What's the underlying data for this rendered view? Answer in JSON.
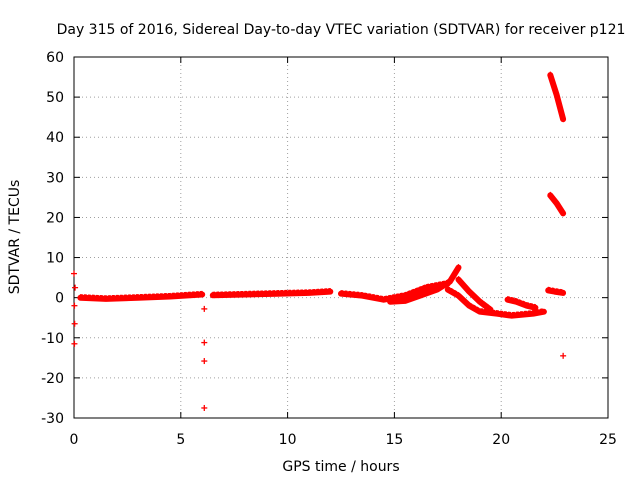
{
  "chart_data": {
    "type": "scatter",
    "title": "Day 315 of 2016, Sidereal Day-to-day VTEC variation (SDTVAR) for receiver p121",
    "xlabel": "GPS time / hours",
    "ylabel": "SDTVAR / TECUs",
    "xlim": [
      0,
      25
    ],
    "ylim": [
      -30,
      60
    ],
    "xticks": [
      0,
      5,
      10,
      15,
      20,
      25
    ],
    "yticks": [
      -30,
      -20,
      -10,
      0,
      10,
      20,
      30,
      40,
      50,
      60
    ],
    "grid": true,
    "marker": "+",
    "color": "#ff0000",
    "series": [
      {
        "points": [
          [
            0.0,
            6.0
          ],
          [
            0.05,
            2.5
          ],
          [
            0.02,
            -2.0
          ],
          [
            0.03,
            -6.5
          ],
          [
            0.02,
            -11.5
          ],
          [
            6.1,
            -2.8
          ],
          [
            6.1,
            -11.2
          ],
          [
            6.1,
            -15.8
          ],
          [
            6.1,
            -27.5
          ],
          [
            22.9,
            -14.5
          ]
        ],
        "dense_segments": [
          [
            [
              0.3,
              0.0
            ],
            [
              1.5,
              -0.3
            ],
            [
              3.0,
              0.0
            ],
            [
              4.5,
              0.3
            ],
            [
              6.0,
              0.8
            ]
          ],
          [
            [
              6.5,
              0.6
            ],
            [
              8.0,
              0.8
            ],
            [
              9.5,
              1.0
            ],
            [
              11.0,
              1.2
            ],
            [
              12.0,
              1.5
            ]
          ],
          [
            [
              12.5,
              1.0
            ],
            [
              13.5,
              0.5
            ],
            [
              14.5,
              -0.5
            ],
            [
              15.5,
              0.5
            ],
            [
              16.5,
              2.5
            ],
            [
              17.5,
              3.5
            ]
          ],
          [
            [
              14.8,
              -1.0
            ],
            [
              15.5,
              -0.8
            ],
            [
              16.2,
              0.5
            ],
            [
              17.0,
              2.0
            ],
            [
              17.6,
              4.0
            ],
            [
              18.0,
              7.5
            ]
          ],
          [
            [
              17.5,
              2.0
            ],
            [
              18.0,
              0.5
            ],
            [
              18.5,
              -2.0
            ],
            [
              19.0,
              -3.5
            ],
            [
              19.8,
              -4.0
            ],
            [
              20.5,
              -4.5
            ],
            [
              21.5,
              -4.0
            ],
            [
              22.0,
              -3.5
            ]
          ],
          [
            [
              18.0,
              4.5
            ],
            [
              18.5,
              1.5
            ],
            [
              19.0,
              -1.0
            ],
            [
              19.5,
              -3.0
            ]
          ],
          [
            [
              20.3,
              -0.5
            ],
            [
              20.7,
              -1.0
            ],
            [
              21.2,
              -2.0
            ],
            [
              21.6,
              -2.5
            ]
          ],
          [
            [
              22.2,
              1.8
            ],
            [
              22.5,
              1.5
            ],
            [
              22.9,
              1.2
            ]
          ],
          [
            [
              22.3,
              25.5
            ],
            [
              22.6,
              23.5
            ],
            [
              22.9,
              21.0
            ]
          ],
          [
            [
              22.3,
              55.5
            ],
            [
              22.6,
              50.5
            ],
            [
              22.9,
              44.5
            ]
          ]
        ]
      }
    ]
  }
}
